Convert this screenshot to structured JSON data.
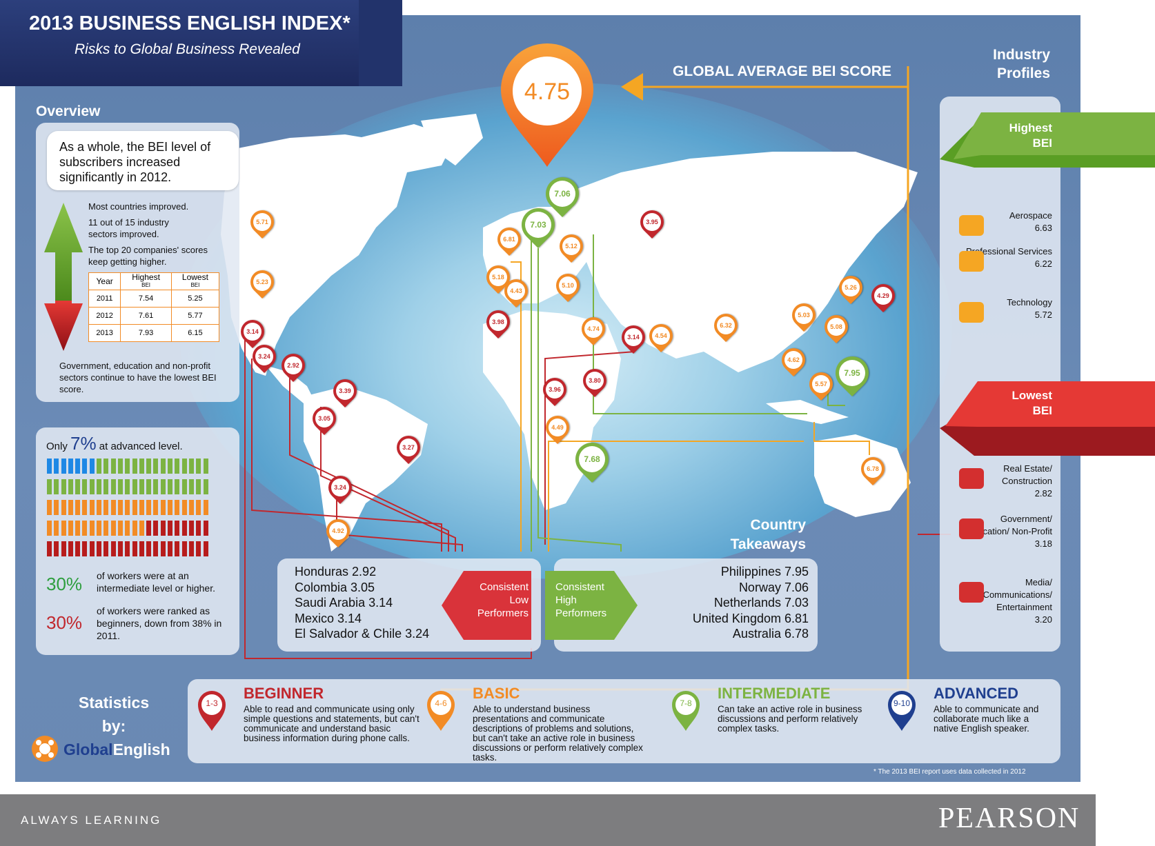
{
  "header": {
    "title": "2013 BUSINESS ENGLISH INDEX*",
    "subtitle": "Risks to Global Business Revealed"
  },
  "global_average": {
    "label": "GLOBAL AVERAGE BEI SCORE",
    "value": "4.75"
  },
  "overview": {
    "heading": "Overview",
    "headline": "As a whole, the BEI level of subscribers increased significantly in 2012.",
    "bullets": [
      "Most countries improved.",
      "11 out of 15 industry sectors improved.",
      "The top 20 companies' scores keep getting higher."
    ],
    "table": {
      "headers": [
        "Year",
        "Highest",
        "Lowest"
      ],
      "subheaders": [
        "",
        "BEI",
        "BEI"
      ],
      "rows": [
        [
          "2011",
          "7.54",
          "5.25"
        ],
        [
          "2012",
          "7.61",
          "5.77"
        ],
        [
          "2013",
          "7.93",
          "6.15"
        ]
      ]
    },
    "footnote": "Government, education and non-profit sectors continue to have the lowest BEI score."
  },
  "workforce": {
    "advanced_prefix": "Only",
    "advanced_pct": "7%",
    "advanced_suffix": "at advanced level.",
    "stat1_pct": "30%",
    "stat1_text": "of workers were at an intermediate level or higher.",
    "stat2_pct": "30%",
    "stat2_text": "of workers were ranked as beginners, down from 38% in 2011."
  },
  "industry": {
    "heading": "Industry Profiles",
    "highest_label": "Highest BEI",
    "lowest_label": "Lowest BEI",
    "highest": [
      {
        "name": "Aerospace",
        "score": "6.63",
        "icon": "airplane-icon"
      },
      {
        "name": "Professional Services",
        "score": "6.22",
        "icon": "meeting-icon"
      },
      {
        "name": "Technology",
        "score": "5.72",
        "icon": "tablet-icon"
      }
    ],
    "lowest": [
      {
        "name": "Real Estate/ Construction",
        "score": "2.82",
        "icon": "house-icon"
      },
      {
        "name": "Government/ Education/ Non-Profit",
        "score": "3.18",
        "icon": "official-icon"
      },
      {
        "name": "Media/ Communications/ Entertainment",
        "score": "3.20",
        "icon": "media-icon"
      }
    ]
  },
  "takeaways": {
    "heading": "Country Takeaways",
    "low_label": "Consistent Low Performers",
    "high_label": "Consistent High Performers",
    "low": [
      "Honduras 2.92",
      "Colombia 3.05",
      "Saudi Arabia 3.14",
      "Mexico 3.14",
      "El Salvador & Chile 3.24"
    ],
    "high": [
      "Philippines 7.95",
      "Norway 7.06",
      "Netherlands 7.03",
      "United Kingdom 6.81",
      "Australia 6.78"
    ]
  },
  "map_pins": [
    {
      "v": "5.71",
      "c": "o"
    },
    {
      "v": "5.23",
      "c": "o"
    },
    {
      "v": "3.14",
      "c": "r"
    },
    {
      "v": "3.24",
      "c": "r"
    },
    {
      "v": "2.92",
      "c": "r"
    },
    {
      "v": "3.39",
      "c": "r"
    },
    {
      "v": "3.05",
      "c": "r"
    },
    {
      "v": "3.27",
      "c": "r"
    },
    {
      "v": "3.24",
      "c": "r"
    },
    {
      "v": "4.92",
      "c": "o"
    },
    {
      "v": "7.06",
      "c": "g"
    },
    {
      "v": "7.03",
      "c": "g"
    },
    {
      "v": "6.81",
      "c": "o"
    },
    {
      "v": "5.12",
      "c": "o"
    },
    {
      "v": "5.18",
      "c": "o"
    },
    {
      "v": "4.43",
      "c": "o"
    },
    {
      "v": "5.10",
      "c": "o"
    },
    {
      "v": "3.98",
      "c": "r"
    },
    {
      "v": "3.95",
      "c": "r"
    },
    {
      "v": "4.74",
      "c": "o"
    },
    {
      "v": "3.14",
      "c": "r"
    },
    {
      "v": "4.54",
      "c": "o"
    },
    {
      "v": "6.32",
      "c": "o"
    },
    {
      "v": "5.03",
      "c": "o"
    },
    {
      "v": "5.26",
      "c": "o"
    },
    {
      "v": "4.29",
      "c": "r"
    },
    {
      "v": "5.08",
      "c": "o"
    },
    {
      "v": "4.62",
      "c": "o"
    },
    {
      "v": "7.95",
      "c": "g"
    },
    {
      "v": "5.57",
      "c": "o"
    },
    {
      "v": "3.96",
      "c": "r"
    },
    {
      "v": "3.80",
      "c": "r"
    },
    {
      "v": "4.49",
      "c": "o"
    },
    {
      "v": "7.68",
      "c": "g"
    },
    {
      "v": "6.78",
      "c": "o"
    }
  ],
  "levels": [
    {
      "range": "1-3",
      "title": "BEGINNER",
      "desc": "Able to read and communicate using only simple questions and statements, but can't communicate and understand basic business information during phone calls.",
      "color": "#c1272d"
    },
    {
      "range": "4-6",
      "title": "BASIC",
      "desc": "Able to understand business presentations and communicate descriptions of problems and solutions, but can't take an active role in business discussions or perform relatively complex tasks.",
      "color": "#f28b25"
    },
    {
      "range": "7-8",
      "title": "INTERMEDIATE",
      "desc": "Can take an active role in business discussions and perform relatively complex tasks.",
      "color": "#7cb342"
    },
    {
      "range": "9-10",
      "title": "ADVANCED",
      "desc": "Able to communicate and collaborate much like a native English speaker.",
      "color": "#1f3f8f"
    }
  ],
  "stats_by": {
    "label": "Statistics by:",
    "brand_a": "Global",
    "brand_b": "English"
  },
  "footnote": "* The 2013 BEI report uses data collected in 2012",
  "footer": {
    "tagline": "ALWAYS LEARNING",
    "brand": "PEARSON"
  },
  "colors": {
    "red": "#c1272d",
    "orange": "#f28b25",
    "green": "#7cb342",
    "blue": "#1e88e5",
    "navy": "#1f3f8f"
  }
}
